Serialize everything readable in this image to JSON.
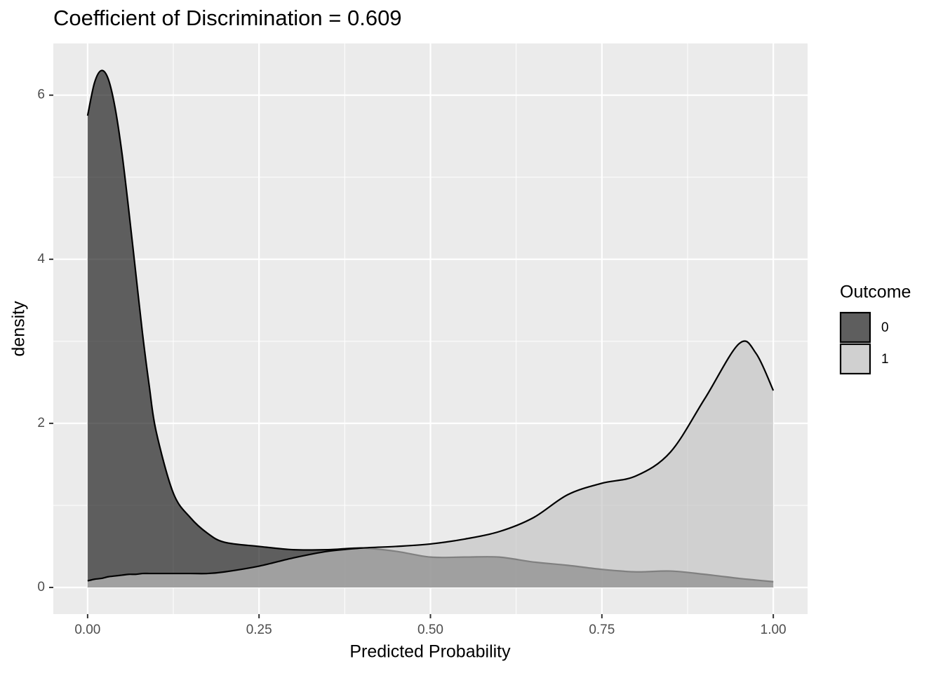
{
  "chart_data": {
    "type": "density",
    "title": "Coefficient of Discrimination = 0.609",
    "x_label": "Predicted Probability",
    "y_label": "density",
    "legend_title": "Outcome",
    "legend_position": "right",
    "grid": true,
    "alpha": 0.66,
    "x": [
      0,
      0.01,
      0.02,
      0.03,
      0.04,
      0.05,
      0.06,
      0.07,
      0.08,
      0.09,
      0.1,
      0.125,
      0.15,
      0.175,
      0.2,
      0.25,
      0.3,
      0.35,
      0.4,
      0.45,
      0.5,
      0.55,
      0.6,
      0.65,
      0.7,
      0.75,
      0.8,
      0.85,
      0.9,
      0.95,
      0.975,
      1
    ],
    "series": [
      {
        "name": "0",
        "color": "#161616",
        "values": [
          5.75,
          6.15,
          6.3,
          6.2,
          5.85,
          5.3,
          4.6,
          3.85,
          3.1,
          2.45,
          1.9,
          1.15,
          0.85,
          0.66,
          0.55,
          0.5,
          0.46,
          0.46,
          0.48,
          0.44,
          0.37,
          0.37,
          0.37,
          0.31,
          0.27,
          0.22,
          0.19,
          0.2,
          0.16,
          0.11,
          0.09,
          0.07
        ]
      },
      {
        "name": "1",
        "color": "#c2c2c2",
        "values": [
          0.08,
          0.1,
          0.11,
          0.13,
          0.14,
          0.15,
          0.16,
          0.16,
          0.17,
          0.17,
          0.17,
          0.17,
          0.17,
          0.17,
          0.19,
          0.26,
          0.36,
          0.44,
          0.48,
          0.5,
          0.53,
          0.59,
          0.68,
          0.85,
          1.13,
          1.27,
          1.36,
          1.65,
          2.3,
          2.97,
          2.85,
          2.4
        ]
      }
    ],
    "xlim": [
      -0.05,
      1.05
    ],
    "ylim": [
      -0.325,
      6.63
    ],
    "xticks": [
      {
        "value": 0,
        "label": "0.00"
      },
      {
        "value": 0.25,
        "label": "0.25"
      },
      {
        "value": 0.5,
        "label": "0.50"
      },
      {
        "value": 0.75,
        "label": "0.75"
      },
      {
        "value": 1,
        "label": "1.00"
      }
    ],
    "yticks": [
      0,
      2,
      4,
      6
    ]
  }
}
